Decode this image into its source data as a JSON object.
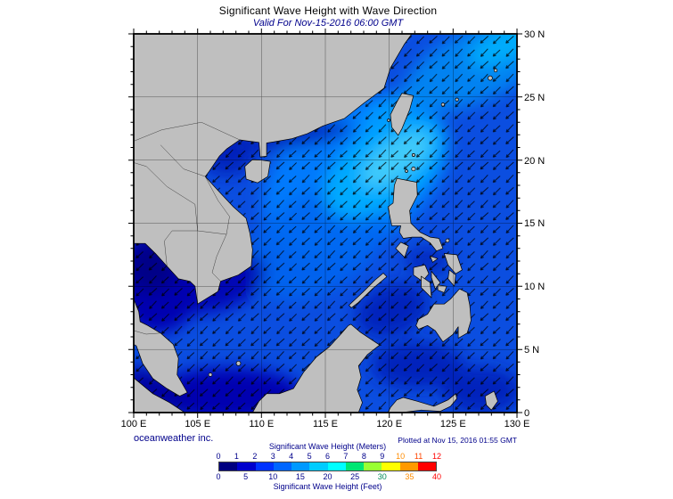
{
  "header": {
    "title": "Significant Wave Height with Wave Direction",
    "subtitle": "Valid For Nov-15-2016 06:00 GMT"
  },
  "map": {
    "lat_labels": [
      "30 N",
      "25 N",
      "20 N",
      "15 N",
      "10 N",
      "5 N",
      "0"
    ],
    "lon_labels": [
      "100 E",
      "105 E",
      "110 E",
      "115 E",
      "120 E",
      "125 E",
      "130 E"
    ],
    "colors": {
      "land": "#bfbfbf",
      "coast": "#000000",
      "ocean_base": "#0b4ee0",
      "moderate": "#0080ff",
      "mid": "#0066f0",
      "strait": "#00a0ff",
      "rough": "#00aaff",
      "core": "#45ccfa",
      "pac1": "#0090f5",
      "pac2": "#00b8ff",
      "calm1": "#0000a0",
      "calm2": "#0000b0",
      "calm3": "#0020b8",
      "gulf_core": "#000088",
      "arrow": "#000000"
    }
  },
  "footer": {
    "credit": "oceanweather inc.",
    "plotted": "Plotted at Nov 15, 2016 01:55 GMT"
  },
  "legend": {
    "title_meters": "Significant Wave Height (Meters)",
    "title_feet": "Significant Wave Height (Feet)",
    "meters_ticks": [
      {
        "v": "0",
        "c": "#00008b"
      },
      {
        "v": "1",
        "c": "#00008b"
      },
      {
        "v": "2",
        "c": "#00008b"
      },
      {
        "v": "3",
        "c": "#00008b"
      },
      {
        "v": "4",
        "c": "#00008b"
      },
      {
        "v": "5",
        "c": "#00008b"
      },
      {
        "v": "6",
        "c": "#00008b"
      },
      {
        "v": "7",
        "c": "#00008b"
      },
      {
        "v": "8",
        "c": "#00008b"
      },
      {
        "v": "9",
        "c": "#00008b"
      },
      {
        "v": "10",
        "c": "#ff8c00"
      },
      {
        "v": "11",
        "c": "#ff4500"
      },
      {
        "v": "12",
        "c": "#ff0000"
      }
    ],
    "feet_ticks": [
      {
        "v": "0",
        "c": "#00008b"
      },
      {
        "v": "5",
        "c": "#00008b"
      },
      {
        "v": "10",
        "c": "#00008b"
      },
      {
        "v": "15",
        "c": "#00008b"
      },
      {
        "v": "20",
        "c": "#00008b"
      },
      {
        "v": "25",
        "c": "#00008b"
      },
      {
        "v": "30",
        "c": "#008b5a"
      },
      {
        "v": "35",
        "c": "#ff8c00"
      },
      {
        "v": "40",
        "c": "#ff0000"
      }
    ],
    "bar_colors": [
      "#000080",
      "#0000cd",
      "#0033ff",
      "#0066ff",
      "#0099ff",
      "#00ccff",
      "#00ffff",
      "#00e673",
      "#99ff33",
      "#ffff00",
      "#ff9900",
      "#ff0000"
    ]
  }
}
